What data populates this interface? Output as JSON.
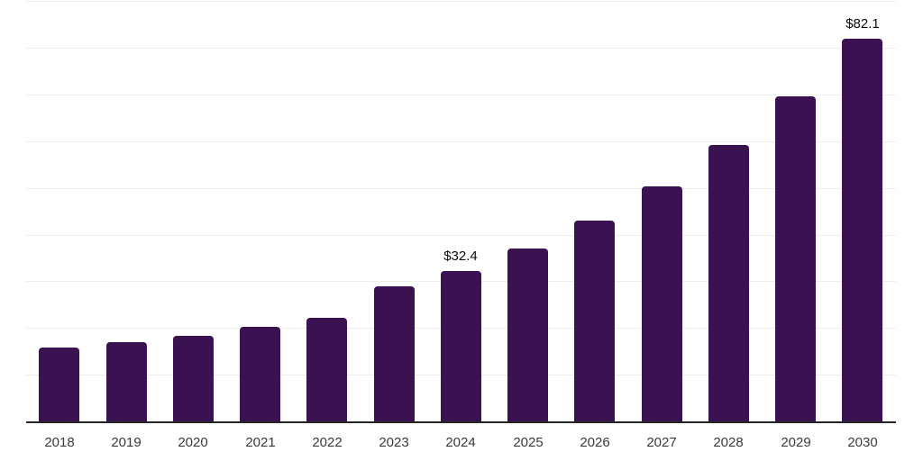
{
  "chart_data": {
    "type": "bar",
    "title": "",
    "xlabel": "",
    "ylabel": "",
    "categories": [
      "2018",
      "2019",
      "2020",
      "2021",
      "2022",
      "2023",
      "2024",
      "2025",
      "2026",
      "2027",
      "2028",
      "2029",
      "2030"
    ],
    "values": [
      16.1,
      17.2,
      18.6,
      20.4,
      22.4,
      29.1,
      32.4,
      37.2,
      43.2,
      50.6,
      59.4,
      69.9,
      82.1
    ],
    "value_labels": [
      "",
      "",
      "",
      "",
      "",
      "",
      "$32.4",
      "",
      "",
      "",
      "",
      "",
      "$82.1"
    ],
    "ylim": [
      0,
      90.5
    ],
    "grid_interval": 10,
    "grid": "horizontal-only",
    "y_tick_labels_visible": false,
    "legend": "none",
    "colors": {
      "bar": "#3A1151",
      "gridline": "#EDEDED",
      "axis_line": "#262626",
      "tick_label": "#3A3A3A",
      "value_label": "#0A0A0A",
      "background": "#FFFFFF"
    }
  }
}
